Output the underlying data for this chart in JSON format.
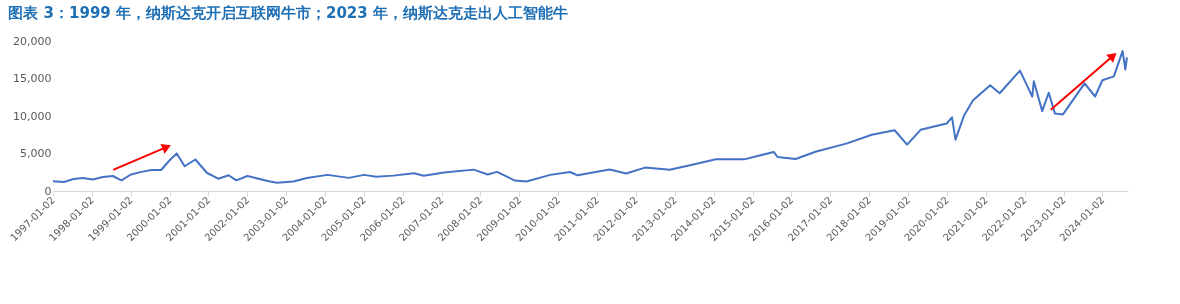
{
  "chart_data": {
    "type": "line",
    "title": "图表 3：1999 年，纳斯达克开启互联网牛市；2023 年，纳斯达克走出人工智能牛",
    "x": [
      "1997-01-02",
      "1997-04-15",
      "1997-07-15",
      "1997-10-08",
      "1998-01-12",
      "1998-04-15",
      "1998-07-17",
      "1998-10-08",
      "1999-01-04",
      "1999-04-12",
      "1999-07-15",
      "1999-10-15",
      "2000-01-03",
      "2000-03-10",
      "2000-05-23",
      "2000-09-01",
      "2000-12-20",
      "2001-04-04",
      "2001-07-10",
      "2001-09-21",
      "2002-01-04",
      "2002-07-23",
      "2002-10-09",
      "2003-03-11",
      "2003-07-15",
      "2004-01-26",
      "2004-08-12",
      "2005-01-03",
      "2005-04-28",
      "2005-10-05",
      "2006-04-19",
      "2006-07-18",
      "2007-01-24",
      "2007-10-31",
      "2008-03-10",
      "2008-06-05",
      "2008-11-20",
      "2009-03-09",
      "2009-10-19",
      "2010-04-23",
      "2010-07-02",
      "2011-04-29",
      "2011-10-03",
      "2012-03-27",
      "2012-11-15",
      "2013-07-15",
      "2014-01-22",
      "2014-10-15",
      "2015-07-20",
      "2015-08-24",
      "2016-02-11",
      "2016-08-15",
      "2017-06-08",
      "2018-01-26",
      "2018-08-29",
      "2018-12-24",
      "2019-04-30",
      "2019-12-31",
      "2020-02-19",
      "2020-03-23",
      "2020-06-10",
      "2020-09-02",
      "2021-02-12",
      "2021-05-12",
      "2021-11-19",
      "2022-03-14",
      "2022-03-29",
      "2022-06-16",
      "2022-08-16",
      "2022-10-14",
      "2022-12-28",
      "2023-07-19",
      "2023-10-26",
      "2024-01-02",
      "2024-04-19",
      "2024-07-10",
      "2024-08-05",
      "2024-08-20"
    ],
    "series": [
      {
        "color": "#4472c4",
        "values": [
          1290,
          1210,
          1590,
          1740,
          1540,
          1860,
          2000,
          1420,
          2200,
          2550,
          2800,
          2800,
          4100,
          5000,
          3300,
          4200,
          2400,
          1640,
          2100,
          1420,
          2000,
          1300,
          1110,
          1270,
          1730,
          2150,
          1750,
          2150,
          1910,
          2050,
          2370,
          2040,
          2470,
          2850,
          2200,
          2550,
          1390,
          1270,
          2150,
          2530,
          2090,
          2870,
          2340,
          3120,
          2840,
          3600,
          4240,
          4220,
          5210,
          4530,
          4270,
          5230,
          6350,
          7500,
          8100,
          6190,
          8160,
          9000,
          9820,
          6860,
          10020,
          12060,
          14100,
          13030,
          16060,
          12580,
          14620,
          10650,
          13100,
          10320,
          10210,
          14350,
          12600,
          14770,
          15280,
          18650,
          16200,
          17820
        ]
      }
    ],
    "xlim": [
      "1997-01-02",
      "2024-08-30"
    ],
    "xticks": [
      "1997-01-02",
      "1998-01-02",
      "1999-01-02",
      "2000-01-02",
      "2001-01-02",
      "2002-01-02",
      "2003-01-02",
      "2004-01-02",
      "2005-01-02",
      "2006-01-02",
      "2007-01-02",
      "2008-01-02",
      "2009-01-02",
      "2010-01-02",
      "2011-01-02",
      "2012-01-02",
      "2013-01-02",
      "2014-01-02",
      "2015-01-02",
      "2016-01-02",
      "2017-01-02",
      "2018-01-02",
      "2019-01-02",
      "2020-01-02",
      "2021-01-02",
      "2022-01-02",
      "2023-01-02",
      "2024-01-02"
    ],
    "ylim": [
      0,
      20000
    ],
    "yticks": [
      {
        "value": 0,
        "label": "0"
      },
      {
        "value": 5000,
        "label": "5,000"
      },
      {
        "value": 10000,
        "label": "10,000"
      },
      {
        "value": 15000,
        "label": "15,000"
      },
      {
        "value": 20000,
        "label": "20,000"
      }
    ],
    "grid": false,
    "legend": false,
    "marker": "none",
    "line_style": "solid"
  }
}
